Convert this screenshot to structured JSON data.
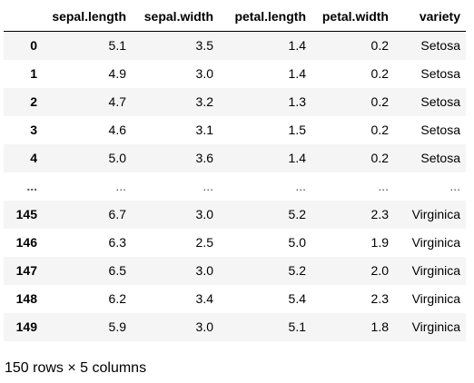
{
  "table": {
    "columns": [
      "",
      "sepal.length",
      "sepal.width",
      "petal.length",
      "petal.width",
      "variety"
    ],
    "rows": [
      {
        "index": "0",
        "cells": [
          "5.1",
          "3.5",
          "1.4",
          "0.2",
          "Setosa"
        ]
      },
      {
        "index": "1",
        "cells": [
          "4.9",
          "3.0",
          "1.4",
          "0.2",
          "Setosa"
        ]
      },
      {
        "index": "2",
        "cells": [
          "4.7",
          "3.2",
          "1.3",
          "0.2",
          "Setosa"
        ]
      },
      {
        "index": "3",
        "cells": [
          "4.6",
          "3.1",
          "1.5",
          "0.2",
          "Setosa"
        ]
      },
      {
        "index": "4",
        "cells": [
          "5.0",
          "3.6",
          "1.4",
          "0.2",
          "Setosa"
        ]
      },
      {
        "index": "...",
        "cells": [
          "...",
          "...",
          "...",
          "...",
          "..."
        ]
      },
      {
        "index": "145",
        "cells": [
          "6.7",
          "3.0",
          "5.2",
          "2.3",
          "Virginica"
        ]
      },
      {
        "index": "146",
        "cells": [
          "6.3",
          "2.5",
          "5.0",
          "1.9",
          "Virginica"
        ]
      },
      {
        "index": "147",
        "cells": [
          "6.5",
          "3.0",
          "5.2",
          "2.0",
          "Virginica"
        ]
      },
      {
        "index": "148",
        "cells": [
          "6.2",
          "3.4",
          "5.4",
          "2.3",
          "Virginica"
        ]
      },
      {
        "index": "149",
        "cells": [
          "5.9",
          "3.0",
          "5.1",
          "1.8",
          "Virginica"
        ]
      }
    ]
  },
  "footer": {
    "summary": "150 rows × 5 columns"
  }
}
